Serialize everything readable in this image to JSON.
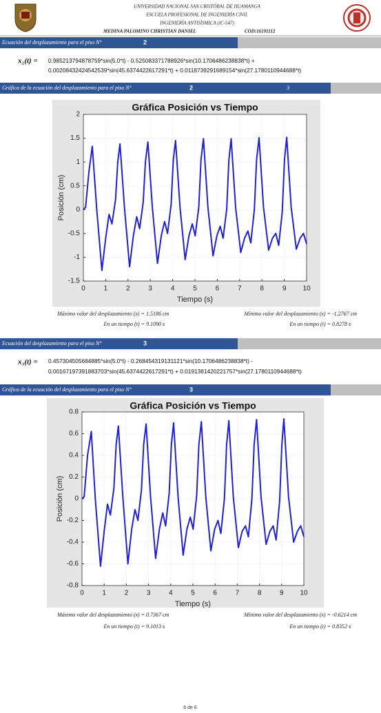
{
  "header": {
    "university": "UNIVERSIDAD NACIONAL SAN CRISTÓBAL DE HUAMANGA",
    "school": "ESCUELA PROFESIONAL DE INGENIERÍA CIVIL",
    "course": "INGENIERÍA ANTISÍSMICA (IC-547)",
    "author": "MEDINA PALOMINO CHRISTIAN DANIEL",
    "code": "COD:16191112"
  },
  "sections": [
    {
      "bar_text": "Ecuación del desplazamiento para el piso N°",
      "bar_number": "2",
      "lhs": "x₂(t) =",
      "equation": [
        "0.985213794878759*sin(5.0*t) - 0.525083371788926*sin(10.1706486238838*t) +",
        "0.00208432424542539*sin(45.6374422617291*t) + 0.0118739291689154*sin(27.1780110944688*t)"
      ],
      "graph_bar_text": "Gráfica de la ecuación del desplazamiento para el piso N°",
      "graph_bar_number": "2",
      "graph_bar_extra": "3",
      "max_label": "Máximo valor del desplazamiento (x) = ",
      "max_value": "1.5186 cm",
      "max_time_label": "En un tiempo (t) = ",
      "max_time": "9.1090 s",
      "min_label": "Mínimo valor del desplazamiento (x) = ",
      "min_value": "-1.2767 cm",
      "min_time_label": "En un tiempo (t) = ",
      "min_time": "0.8278 s"
    },
    {
      "bar_text": "Ecuación del desplazamiento para el piso N°",
      "bar_number": "3",
      "lhs": "x₃(t) =",
      "equation": [
        "0.457304505684885*sin(5.0*t) - 0.268454319131121*sin(10.1706486238838*t) -",
        "0.00167197391883703*sin(45.6374422617291*t) + 0.0191381420221757*sin(27.1780110944688*t)"
      ],
      "graph_bar_text": "Gráfica de la ecuación del desplazamiento para el piso N°",
      "graph_bar_number": "3",
      "max_label": "Máximo valor del desplazamiento (x) = ",
      "max_value": "0.7367 cm",
      "max_time_label": "En un tiempo (t) = ",
      "max_time": "9.1013 s",
      "min_label": "Mínimo valor del desplazamiento (x) = ",
      "min_value": "-0.6214 cm",
      "min_time_label": "En un tiempo (t) = ",
      "min_time": "0.8352 s"
    }
  ],
  "chart_data": [
    {
      "type": "line",
      "title": "Gráfica Posición vs Tiempo",
      "x_label": "Tiempo (s)",
      "y_label": "Posición (cm)",
      "grid": true,
      "xlim": [
        0,
        10
      ],
      "ylim": [
        -1.5,
        2
      ],
      "xticks": [
        0,
        1,
        2,
        3,
        4,
        5,
        6,
        7,
        8,
        9,
        10
      ],
      "yticks": [
        -1.5,
        -1,
        -0.5,
        0,
        0.5,
        1,
        1.5,
        2
      ],
      "x": [
        0,
        0.1,
        0.25,
        0.4,
        0.6,
        0.83,
        1.0,
        1.15,
        1.28,
        1.44,
        1.54,
        1.64,
        1.84,
        2.07,
        2.24,
        2.39,
        2.52,
        2.68,
        2.78,
        2.89,
        3.09,
        3.32,
        3.49,
        3.64,
        3.77,
        3.93,
        4.03,
        4.13,
        4.33,
        4.56,
        4.73,
        4.88,
        5.01,
        5.17,
        5.27,
        5.38,
        5.58,
        5.81,
        5.98,
        6.13,
        6.26,
        6.42,
        6.52,
        6.62,
        6.82,
        7.05,
        7.22,
        7.37,
        7.5,
        7.66,
        7.76,
        7.87,
        8.07,
        8.3,
        8.47,
        8.62,
        8.75,
        8.91,
        9.01,
        9.11,
        9.31,
        9.54,
        9.71,
        9.86,
        10
      ],
      "series": [
        {
          "color": "#1f1fd6",
          "values": [
            0,
            0.05,
            0.8,
            1.33,
            0,
            -1.2767,
            -0.6,
            -0.1,
            -0.3,
            0.2,
            1.0,
            1.38,
            0.05,
            -1.2,
            -0.55,
            -0.15,
            -0.4,
            0.15,
            1.0,
            1.42,
            0.05,
            -1.13,
            -0.55,
            -0.25,
            -0.5,
            0.1,
            1.05,
            1.45,
            0.05,
            -1.05,
            -0.55,
            -0.3,
            -0.55,
            0.05,
            1.05,
            1.49,
            0.05,
            -0.97,
            -0.55,
            -0.35,
            -0.6,
            0,
            1.05,
            1.49,
            0.05,
            -0.9,
            -0.6,
            -0.45,
            -0.7,
            0,
            1.05,
            1.51,
            0.05,
            -0.85,
            -0.6,
            -0.5,
            -0.75,
            -0.05,
            1.05,
            1.5186,
            0.05,
            -0.83,
            -0.6,
            -0.5,
            -0.72
          ]
        }
      ]
    },
    {
      "type": "line",
      "title": "Gráfica Posición vs Tiempo",
      "x_label": "Tiempo (s)",
      "y_label": "Posición (cm)",
      "grid": true,
      "xlim": [
        0,
        10
      ],
      "ylim": [
        -0.8,
        0.8
      ],
      "xticks": [
        0,
        1,
        2,
        3,
        4,
        5,
        6,
        7,
        8,
        9,
        10
      ],
      "yticks": [
        -0.8,
        -0.6,
        -0.4,
        -0.2,
        0,
        0.2,
        0.4,
        0.6,
        0.8
      ],
      "x": [
        0,
        0.1,
        0.25,
        0.42,
        0.6,
        0.8352,
        1.0,
        1.15,
        1.28,
        1.44,
        1.54,
        1.64,
        1.84,
        2.07,
        2.24,
        2.39,
        2.52,
        2.68,
        2.78,
        2.89,
        3.09,
        3.32,
        3.49,
        3.64,
        3.77,
        3.93,
        4.03,
        4.13,
        4.33,
        4.56,
        4.73,
        4.88,
        5.01,
        5.17,
        5.27,
        5.38,
        5.58,
        5.81,
        5.98,
        6.13,
        6.26,
        6.42,
        6.52,
        6.62,
        6.82,
        7.05,
        7.22,
        7.37,
        7.5,
        7.66,
        7.76,
        7.87,
        8.07,
        8.3,
        8.47,
        8.62,
        8.75,
        8.91,
        9.01,
        9.1,
        9.31,
        9.54,
        9.71,
        9.86,
        10
      ],
      "series": [
        {
          "color": "#1f1fd6",
          "values": [
            0,
            0.02,
            0.4,
            0.62,
            0,
            -0.6214,
            -0.3,
            -0.05,
            -0.15,
            0.1,
            0.5,
            0.67,
            0.02,
            -0.6,
            -0.28,
            -0.1,
            -0.2,
            0.08,
            0.5,
            0.69,
            0.02,
            -0.55,
            -0.28,
            -0.13,
            -0.25,
            0.05,
            0.5,
            0.7,
            0.02,
            -0.52,
            -0.28,
            -0.17,
            -0.28,
            0.03,
            0.5,
            0.71,
            0.02,
            -0.48,
            -0.28,
            -0.2,
            -0.32,
            0,
            0.5,
            0.72,
            0.02,
            -0.45,
            -0.3,
            -0.25,
            -0.35,
            0,
            0.5,
            0.73,
            0.02,
            -0.42,
            -0.3,
            -0.25,
            -0.38,
            -0.02,
            0.5,
            0.7367,
            0.02,
            -0.4,
            -0.3,
            -0.25,
            -0.35
          ]
        }
      ]
    }
  ],
  "footer": {
    "page": "6 de 6"
  }
}
